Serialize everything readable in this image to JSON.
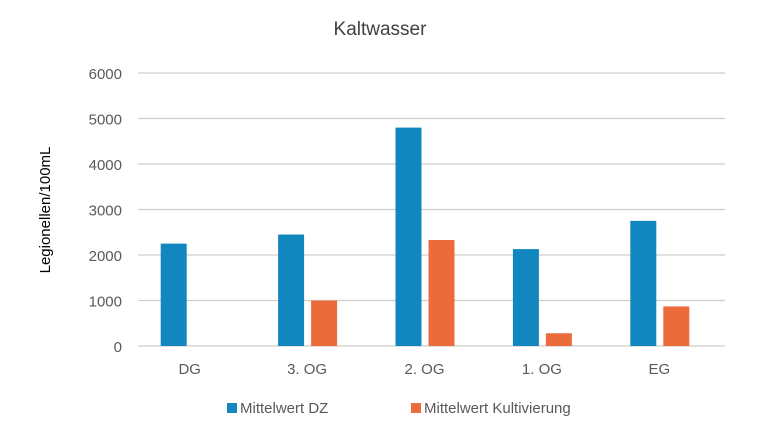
{
  "chart_data": {
    "type": "bar",
    "title": "Kaltwasser",
    "xlabel": "",
    "ylabel": "Legionellen/100mL",
    "ylim": [
      0,
      6000
    ],
    "yticks": [
      0,
      1000,
      2000,
      3000,
      4000,
      5000,
      6000
    ],
    "grid": true,
    "legend_position": "bottom",
    "categories": [
      "DG",
      "3. OG",
      "2. OG",
      "1. OG",
      "EG"
    ],
    "series": [
      {
        "name": "Mittelwert DZ",
        "color": "#1287BF",
        "values": [
          2250,
          2450,
          4800,
          2130,
          2750
        ]
      },
      {
        "name": "Mittelwert Kultivierung",
        "color": "#EB6C3A",
        "values": [
          0,
          1000,
          2330,
          280,
          870
        ]
      }
    ]
  }
}
